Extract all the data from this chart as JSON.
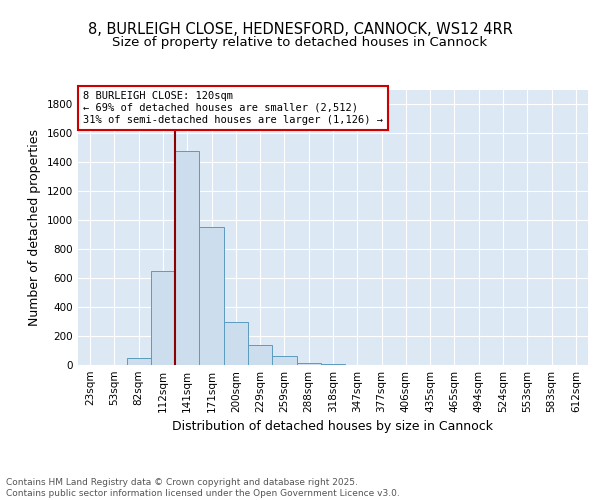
{
  "title_line1": "8, BURLEIGH CLOSE, HEDNESFORD, CANNOCK, WS12 4RR",
  "title_line2": "Size of property relative to detached houses in Cannock",
  "xlabel": "Distribution of detached houses by size in Cannock",
  "ylabel": "Number of detached properties",
  "categories": [
    "23sqm",
    "53sqm",
    "82sqm",
    "112sqm",
    "141sqm",
    "171sqm",
    "200sqm",
    "229sqm",
    "259sqm",
    "288sqm",
    "318sqm",
    "347sqm",
    "377sqm",
    "406sqm",
    "435sqm",
    "465sqm",
    "494sqm",
    "524sqm",
    "553sqm",
    "583sqm",
    "612sqm"
  ],
  "values": [
    0,
    0,
    50,
    650,
    1480,
    950,
    300,
    140,
    60,
    15,
    5,
    2,
    1,
    1,
    0,
    0,
    0,
    0,
    0,
    0,
    0
  ],
  "bar_color": "#ccdded",
  "bar_edge_color": "#5b9bbf",
  "vline_color": "#8b0000",
  "annotation_text": "8 BURLEIGH CLOSE: 120sqm\n← 69% of detached houses are smaller (2,512)\n31% of semi-detached houses are larger (1,126) →",
  "annotation_box_color": "#ffffff",
  "annotation_box_edge_color": "#cc0000",
  "ylim": [
    0,
    1900
  ],
  "yticks": [
    0,
    200,
    400,
    600,
    800,
    1000,
    1200,
    1400,
    1600,
    1800
  ],
  "bg_color": "#dce9f5",
  "grid_color": "#ffffff",
  "fig_bg_color": "#ffffff",
  "footer_text": "Contains HM Land Registry data © Crown copyright and database right 2025.\nContains public sector information licensed under the Open Government Licence v3.0.",
  "title_fontsize": 10.5,
  "subtitle_fontsize": 9.5,
  "axis_label_fontsize": 9,
  "tick_fontsize": 7.5,
  "annotation_fontsize": 7.5,
  "footer_fontsize": 6.5
}
